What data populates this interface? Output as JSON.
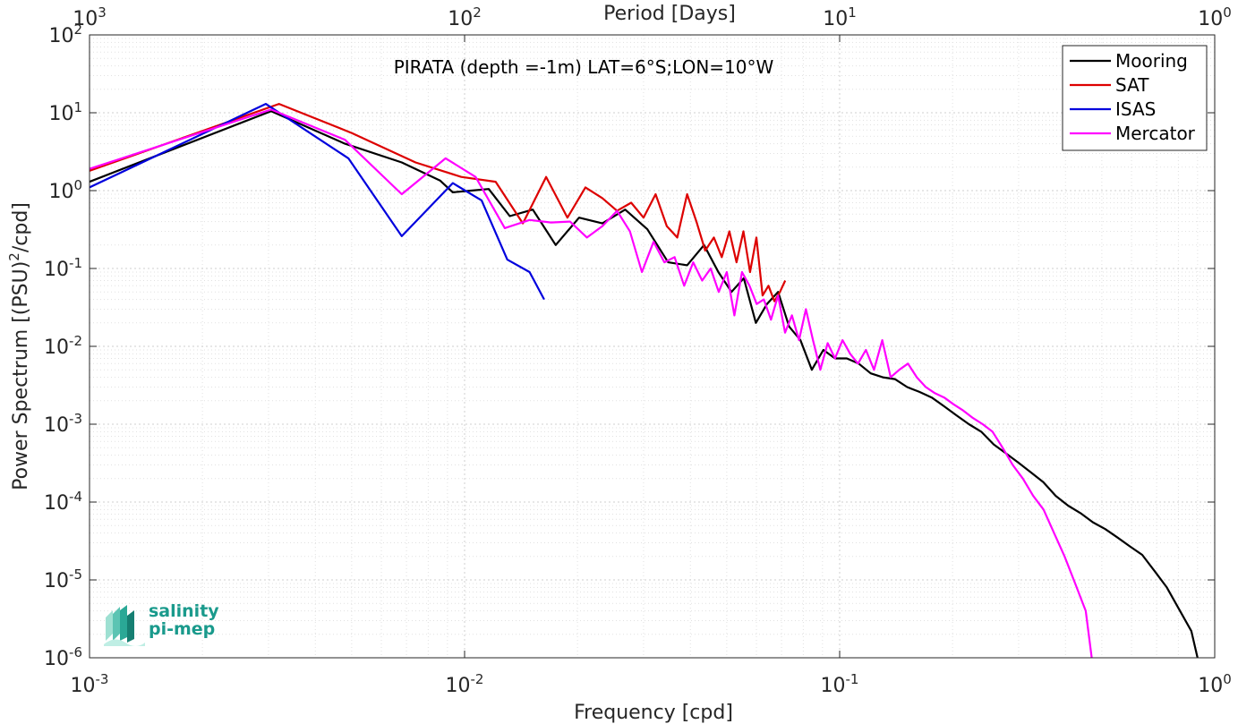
{
  "chart_data": {
    "type": "line",
    "title": "PIRATA (depth =-1m) LAT=6°S;LON=10°W",
    "xlabel": "Frequency [cpd]",
    "ylabel_main": "Power Spectrum [(PSU)",
    "ylabel_sup": "2",
    "ylabel_tail": "/cpd]",
    "top_xlabel": "Period [Days]",
    "xscale": "log",
    "yscale": "log",
    "xlim": [
      0.001,
      1
    ],
    "ylim": [
      1e-06,
      100
    ],
    "grid": true,
    "legend_position": "top-right",
    "x_ticks": [
      {
        "base": "10",
        "exp": "-3"
      },
      {
        "base": "10",
        "exp": "-2"
      },
      {
        "base": "10",
        "exp": "-1"
      },
      {
        "base": "10",
        "exp": "0"
      }
    ],
    "top_ticks": [
      {
        "base": "10",
        "exp": "3"
      },
      {
        "base": "10",
        "exp": "2"
      },
      {
        "base": "10",
        "exp": "1"
      },
      {
        "base": "10",
        "exp": "0"
      }
    ],
    "y_ticks": [
      {
        "base": "10",
        "exp": "-6"
      },
      {
        "base": "10",
        "exp": "-5"
      },
      {
        "base": "10",
        "exp": "-4"
      },
      {
        "base": "10",
        "exp": "-3"
      },
      {
        "base": "10",
        "exp": "-2"
      },
      {
        "base": "10",
        "exp": "-1"
      },
      {
        "base": "10",
        "exp": "0"
      },
      {
        "base": "10",
        "exp": "1"
      },
      {
        "base": "10",
        "exp": "2"
      }
    ],
    "series": [
      {
        "name": "Mooring",
        "color": "#000000",
        "x": [
          0.001,
          0.00305,
          0.0048,
          0.0068,
          0.0086,
          0.0093,
          0.0104,
          0.0116,
          0.0132,
          0.0152,
          0.0175,
          0.0202,
          0.0233,
          0.0268,
          0.0307,
          0.0349,
          0.0392,
          0.0435,
          0.0475,
          0.0515,
          0.0555,
          0.0598,
          0.064,
          0.0685,
          0.0733,
          0.0786,
          0.0843,
          0.0905,
          0.0972,
          0.1045,
          0.1124,
          0.121,
          0.1303,
          0.1404,
          0.1513,
          0.1632,
          0.176,
          0.1899,
          0.2049,
          0.2211,
          0.2386,
          0.2575,
          0.2779,
          0.2999,
          0.3236,
          0.3492,
          0.3768,
          0.4066,
          0.4387,
          0.4733,
          0.5106,
          0.5508,
          0.5941,
          0.6408,
          0.6911,
          0.7453,
          0.8037,
          0.8665,
          0.9
        ],
        "y": [
          1.3,
          10.5,
          4.0,
          2.3,
          1.35,
          0.95,
          1.0,
          1.05,
          0.47,
          0.57,
          0.2,
          0.45,
          0.38,
          0.57,
          0.32,
          0.12,
          0.11,
          0.2,
          0.09,
          0.05,
          0.075,
          0.02,
          0.035,
          0.05,
          0.018,
          0.012,
          0.005,
          0.009,
          0.007,
          0.007,
          0.006,
          0.0045,
          0.004,
          0.0038,
          0.003,
          0.0026,
          0.0022,
          0.0017,
          0.0013,
          0.001,
          0.0008,
          0.00055,
          0.00042,
          0.00032,
          0.00024,
          0.00018,
          0.00012,
          9e-05,
          7.2e-05,
          5.5e-05,
          4.5e-05,
          3.5e-05,
          2.7e-05,
          2.1e-05,
          1.3e-05,
          8e-06,
          4.2e-06,
          2.2e-06,
          1e-06
        ]
      },
      {
        "name": "SAT",
        "color": "#dd0000",
        "x": [
          0.001,
          0.0032,
          0.005,
          0.0074,
          0.0098,
          0.0121,
          0.0143,
          0.0165,
          0.0188,
          0.021,
          0.0233,
          0.0255,
          0.0278,
          0.03,
          0.0323,
          0.0346,
          0.0369,
          0.0392,
          0.0415,
          0.0438,
          0.0462,
          0.0485,
          0.0508,
          0.0531,
          0.0554,
          0.0577,
          0.06,
          0.0623,
          0.0646,
          0.067,
          0.0693,
          0.0716
        ],
        "y": [
          1.8,
          13.0,
          5.5,
          2.3,
          1.5,
          1.3,
          0.38,
          1.5,
          0.45,
          1.1,
          0.8,
          0.55,
          0.7,
          0.45,
          0.9,
          0.35,
          0.25,
          0.9,
          0.4,
          0.17,
          0.25,
          0.14,
          0.3,
          0.12,
          0.3,
          0.09,
          0.25,
          0.045,
          0.06,
          0.038,
          0.05,
          0.07
        ]
      },
      {
        "name": "ISAS",
        "color": "#0000dd",
        "x": [
          0.001,
          0.00295,
          0.0049,
          0.0068,
          0.0093,
          0.0111,
          0.013,
          0.0149,
          0.0163
        ],
        "y": [
          1.1,
          13.0,
          2.6,
          0.26,
          1.25,
          0.75,
          0.13,
          0.09,
          0.04
        ]
      },
      {
        "name": "Mercator",
        "color": "#ff00ff",
        "x": [
          0.001,
          0.00305,
          0.0048,
          0.0068,
          0.0089,
          0.0107,
          0.0128,
          0.0149,
          0.017,
          0.0191,
          0.0212,
          0.0233,
          0.0255,
          0.0276,
          0.0297,
          0.0319,
          0.0341,
          0.0363,
          0.0385,
          0.0407,
          0.043,
          0.0453,
          0.0476,
          0.05,
          0.0524,
          0.0549,
          0.0575,
          0.0601,
          0.0628,
          0.0656,
          0.0685,
          0.0715,
          0.0746,
          0.0779,
          0.0813,
          0.0849,
          0.0888,
          0.0929,
          0.0972,
          0.1018,
          0.1067,
          0.1119,
          0.1175,
          0.1235,
          0.1299,
          0.1368,
          0.1442,
          0.1521,
          0.1606,
          0.1697,
          0.1795,
          0.19,
          0.2013,
          0.2135,
          0.2266,
          0.2406,
          0.2557,
          0.2719,
          0.2893,
          0.308,
          0.3281,
          0.3497,
          0.3729,
          0.3978,
          0.4245,
          0.4531,
          0.47
        ],
        "y": [
          1.9,
          11.0,
          4.5,
          0.9,
          2.6,
          1.5,
          0.33,
          0.42,
          0.39,
          0.4,
          0.25,
          0.35,
          0.55,
          0.3,
          0.09,
          0.22,
          0.12,
          0.14,
          0.06,
          0.12,
          0.07,
          0.1,
          0.05,
          0.09,
          0.025,
          0.09,
          0.06,
          0.035,
          0.04,
          0.022,
          0.045,
          0.015,
          0.025,
          0.012,
          0.03,
          0.012,
          0.005,
          0.011,
          0.007,
          0.012,
          0.008,
          0.006,
          0.009,
          0.005,
          0.012,
          0.004,
          0.005,
          0.006,
          0.004,
          0.003,
          0.0025,
          0.0022,
          0.0018,
          0.0015,
          0.0012,
          0.001,
          0.0008,
          0.0005,
          0.0003,
          0.0002,
          0.00012,
          8e-05,
          4e-05,
          2e-05,
          9e-06,
          4e-06,
          1e-06
        ]
      }
    ]
  },
  "logo": {
    "line1": "salinity",
    "line2": "pi-mep",
    "color": "#1a9a8c"
  }
}
